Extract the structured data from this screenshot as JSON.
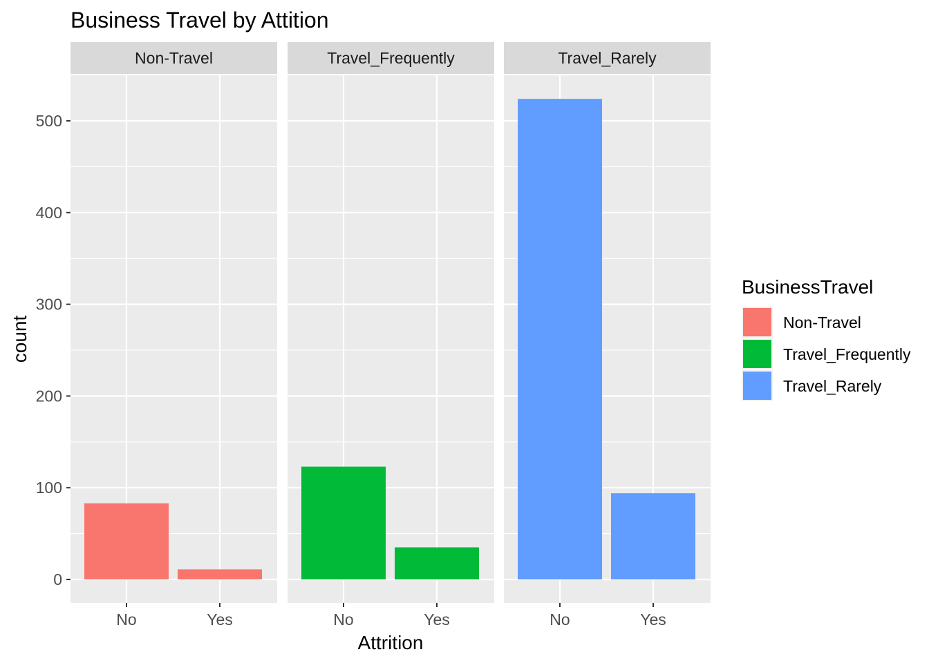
{
  "chart_data": {
    "type": "bar",
    "title": "Business Travel by Attition",
    "xlabel": "Attrition",
    "ylabel": "count",
    "categories": [
      "No",
      "Yes"
    ],
    "facets": [
      {
        "label": "Non-Travel",
        "fill": "Non-Travel",
        "values": [
          83,
          11
        ]
      },
      {
        "label": "Travel_Frequently",
        "fill": "Travel_Frequently",
        "values": [
          123,
          35
        ]
      },
      {
        "label": "Travel_Rarely",
        "fill": "Travel_Rarely",
        "values": [
          524,
          94
        ]
      }
    ],
    "ylim": [
      -25,
      550
    ],
    "y_ticks": [
      0,
      100,
      200,
      300,
      400,
      500
    ],
    "grid": true,
    "legend": {
      "title": "BusinessTravel",
      "position": "right",
      "entries": [
        {
          "label": "Non-Travel",
          "color": "#F8766D"
        },
        {
          "label": "Travel_Frequently",
          "color": "#00BA38"
        },
        {
          "label": "Travel_Rarely",
          "color": "#619CFF"
        }
      ]
    }
  }
}
